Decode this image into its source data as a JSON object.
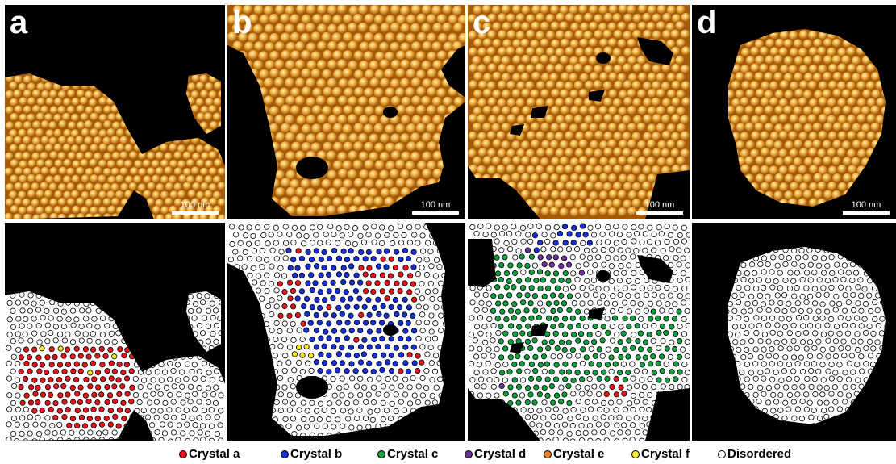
{
  "panels": [
    {
      "label": "a",
      "scale_text": "100 nm"
    },
    {
      "label": "b",
      "scale_text": "100 nm"
    },
    {
      "label": "c",
      "scale_text": "100 nm"
    },
    {
      "label": "d",
      "scale_text": "100 nm"
    }
  ],
  "legend": [
    {
      "label": "Crystal a",
      "color": "#e8141c"
    },
    {
      "label": "Crystal b",
      "color": "#1530d8"
    },
    {
      "label": "Crystal c",
      "color": "#10a040"
    },
    {
      "label": "Crystal d",
      "color": "#7030a0"
    },
    {
      "label": "Crystal e",
      "color": "#f08020"
    },
    {
      "label": "Crystal f",
      "color": "#f8e81c"
    },
    {
      "label": "Disordered",
      "color": "#ffffff"
    }
  ],
  "colors": {
    "afm_dark": "#000000",
    "afm_mid": "#b86a10",
    "afm_bright": "#ffe6a0"
  }
}
